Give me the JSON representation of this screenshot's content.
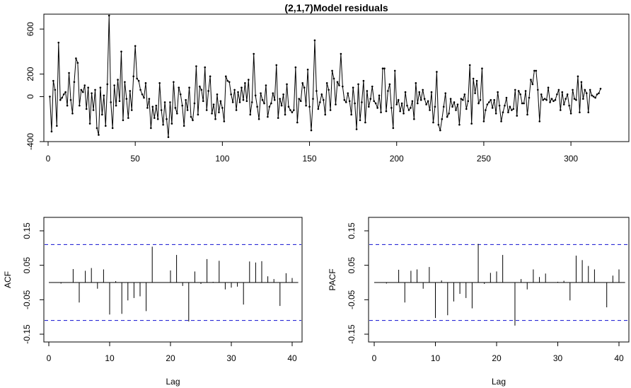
{
  "chart_data": [
    {
      "type": "line",
      "title": "(2,1,7)Model residuals",
      "xlabel": "",
      "ylabel": "",
      "xlim": [
        0,
        330
      ],
      "ylim": [
        -400,
        720
      ],
      "xticks": [
        0,
        50,
        100,
        150,
        200,
        250,
        300
      ],
      "yticks": [
        -400,
        0,
        200,
        600
      ],
      "markers": true,
      "y": [
        0,
        -310,
        140,
        60,
        -260,
        480,
        -30,
        -10,
        20,
        40,
        -80,
        210,
        -30,
        -150,
        130,
        340,
        300,
        -80,
        60,
        40,
        100,
        -110,
        80,
        -240,
        30,
        -120,
        60,
        -280,
        -340,
        80,
        -160,
        10,
        -260,
        110,
        720,
        -50,
        -280,
        100,
        -80,
        150,
        -40,
        400,
        -210,
        130,
        -20,
        -190,
        50,
        -120,
        180,
        450,
        160,
        140,
        60,
        20,
        -10,
        120,
        -100,
        -20,
        -280,
        -90,
        -190,
        -80,
        -200,
        120,
        -120,
        -250,
        -50,
        -200,
        -360,
        -50,
        -240,
        130,
        -100,
        -150,
        80,
        20,
        -80,
        -260,
        -30,
        -120,
        80,
        -180,
        -210,
        -60,
        270,
        -160,
        90,
        60,
        -40,
        260,
        -120,
        50,
        180,
        -150,
        -70,
        -200,
        20,
        -140,
        -40,
        -100,
        -220,
        180,
        140,
        130,
        20,
        -50,
        60,
        -120,
        40,
        -50,
        80,
        -30,
        120,
        -40,
        150,
        -160,
        -50,
        380,
        10,
        -90,
        -200,
        30,
        -30,
        -60,
        100,
        -180,
        -90,
        -60,
        30,
        -30,
        280,
        -190,
        -20,
        -80,
        20,
        -160,
        110,
        -90,
        -120,
        -140,
        -120,
        260,
        -230,
        -20,
        -40,
        120,
        80,
        -80,
        240,
        -90,
        -300,
        -20,
        500,
        50,
        -110,
        -50,
        20,
        -30,
        -160,
        120,
        60,
        -120,
        230,
        160,
        -70,
        130,
        100,
        380,
        90,
        -30,
        -50,
        30,
        -40,
        -160,
        80,
        -60,
        -290,
        110,
        -210,
        -50,
        140,
        -230,
        50,
        -90,
        -20,
        90,
        -40,
        -60,
        -100,
        10,
        -140,
        250,
        250,
        -130,
        50,
        110,
        -100,
        -280,
        230,
        -70,
        -30,
        -130,
        -60,
        -150,
        40,
        -80,
        -120,
        -100,
        -40,
        -200,
        120,
        -60,
        40,
        -30,
        60,
        -20,
        -70,
        -40,
        -120,
        40,
        -230,
        -90,
        220,
        -250,
        -300,
        -200,
        -90,
        30,
        -180,
        -150,
        -20,
        -90,
        -50,
        -120,
        -70,
        -250,
        -20,
        -30,
        20,
        -110,
        -40,
        280,
        -240,
        160,
        30,
        140,
        -60,
        -30,
        250,
        -220,
        -120,
        -70,
        -50,
        -30,
        -100,
        -30,
        -150,
        40,
        -80,
        -220,
        -140,
        -80,
        -10,
        -140,
        -90,
        -120,
        -110,
        60,
        -170,
        50,
        20,
        -60,
        -60,
        50,
        -160,
        -10,
        150,
        110,
        230,
        230,
        60,
        -220,
        20,
        -30,
        -20,
        -30,
        80,
        -50,
        -20,
        -40,
        -30,
        20,
        60,
        -120,
        40,
        -70,
        -20,
        20,
        -80,
        -150,
        60,
        -20,
        -30,
        180,
        -140,
        130,
        -20,
        60,
        30,
        -140,
        60,
        10,
        0,
        -10,
        20,
        30,
        70
      ]
    },
    {
      "type": "bar",
      "xlabel": "Lag",
      "ylabel": "ACF",
      "xlim": [
        0,
        41
      ],
      "ylim": [
        -0.19,
        0.19
      ],
      "xticks": [
        0,
        10,
        20,
        30,
        40
      ],
      "yticks": [
        -0.15,
        -0.05,
        0.05,
        0.15
      ],
      "conf_band": [
        -0.11,
        0.11
      ],
      "lags": [
        1,
        2,
        3,
        4,
        5,
        6,
        7,
        8,
        9,
        10,
        11,
        12,
        13,
        14,
        15,
        16,
        17,
        18,
        19,
        20,
        21,
        22,
        23,
        24,
        25,
        26,
        27,
        28,
        29,
        30,
        31,
        32,
        33,
        34,
        35,
        36,
        37,
        38,
        39,
        40
      ],
      "values": [
        0.0,
        -0.003,
        0.0,
        0.039,
        -0.058,
        0.034,
        0.042,
        -0.018,
        0.038,
        -0.093,
        0.004,
        -0.091,
        -0.052,
        -0.045,
        -0.04,
        -0.083,
        0.104,
        0.0,
        0.0,
        0.035,
        0.08,
        -0.01,
        -0.113,
        0.032,
        -0.004,
        0.068,
        0.002,
        0.063,
        -0.02,
        -0.015,
        -0.012,
        -0.064,
        0.061,
        0.058,
        0.062,
        0.018,
        0.01,
        -0.068,
        0.027,
        0.013
      ]
    },
    {
      "type": "bar",
      "xlabel": "Lag",
      "ylabel": "PACF",
      "xlim": [
        0,
        41
      ],
      "ylim": [
        -0.19,
        0.19
      ],
      "xticks": [
        0,
        10,
        20,
        30,
        40
      ],
      "yticks": [
        -0.15,
        -0.05,
        0.05,
        0.15
      ],
      "conf_band": [
        -0.11,
        0.11
      ],
      "lags": [
        1,
        2,
        3,
        4,
        5,
        6,
        7,
        8,
        9,
        10,
        11,
        12,
        13,
        14,
        15,
        16,
        17,
        18,
        19,
        20,
        21,
        22,
        23,
        24,
        25,
        26,
        27,
        28,
        29,
        30,
        31,
        32,
        33,
        34,
        35,
        36,
        37,
        38,
        39,
        40
      ],
      "values": [
        0.0,
        -0.003,
        0.0,
        0.037,
        -0.058,
        0.034,
        0.038,
        -0.018,
        0.045,
        -0.103,
        0.006,
        -0.095,
        -0.055,
        -0.033,
        -0.045,
        -0.075,
        0.112,
        -0.004,
        0.028,
        0.032,
        0.08,
        0.0,
        -0.125,
        0.01,
        -0.02,
        0.038,
        0.016,
        0.026,
        0.0,
        0.002,
        0.005,
        -0.052,
        0.078,
        0.065,
        0.048,
        0.038,
        0.0,
        -0.072,
        0.02,
        0.038
      ]
    }
  ]
}
